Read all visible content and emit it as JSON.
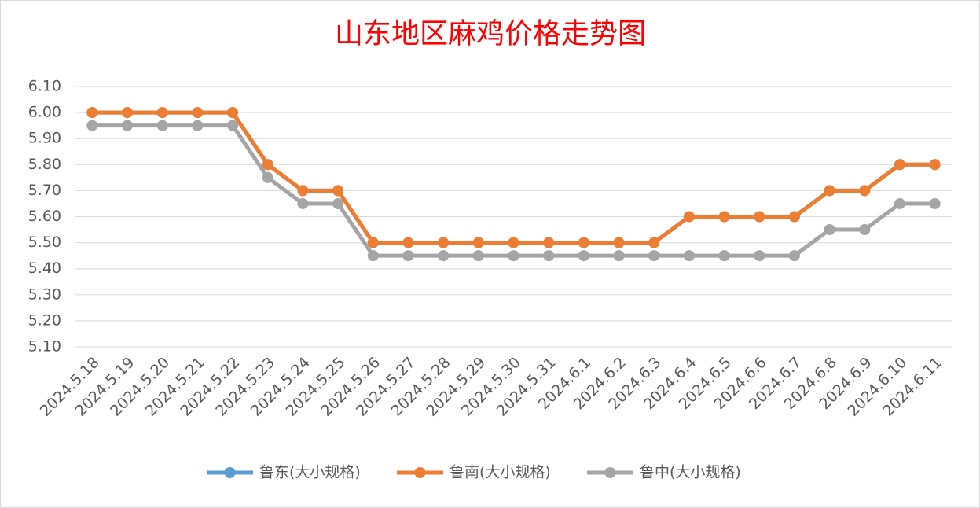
{
  "chart_data": {
    "type": "line",
    "title": "山东地区麻鸡价格走势图",
    "categories": [
      "2024.5.18",
      "2024.5.19",
      "2024.5.20",
      "2024.5.21",
      "2024.5.22",
      "2024.5.23",
      "2024.5.24",
      "2024.5.25",
      "2024.5.26",
      "2024.5.27",
      "2024.5.28",
      "2024.5.29",
      "2024.5.30",
      "2024.5.31",
      "2024.6.1",
      "2024.6.2",
      "2024.6.3",
      "2024.6.4",
      "2024.6.5",
      "2024.6.6",
      "2024.6.7",
      "2024.6.8",
      "2024.6.9",
      "2024.6.10",
      "2024.6.11"
    ],
    "series": [
      {
        "name": "鲁东(大小规格)",
        "color": "#5b9bd5",
        "values": [
          6.0,
          6.0,
          6.0,
          6.0,
          6.0,
          5.8,
          5.7,
          5.7,
          5.5,
          5.5,
          5.5,
          5.5,
          5.5,
          5.5,
          5.5,
          5.5,
          5.5,
          5.6,
          5.6,
          5.6,
          5.6,
          5.7,
          5.7,
          5.8,
          5.8
        ]
      },
      {
        "name": "鲁南(大小规格)",
        "color": "#ed7d31",
        "values": [
          6.0,
          6.0,
          6.0,
          6.0,
          6.0,
          5.8,
          5.7,
          5.7,
          5.5,
          5.5,
          5.5,
          5.5,
          5.5,
          5.5,
          5.5,
          5.5,
          5.5,
          5.6,
          5.6,
          5.6,
          5.6,
          5.7,
          5.7,
          5.8,
          5.8
        ]
      },
      {
        "name": "鲁中(大小规格)",
        "color": "#a5a5a5",
        "values": [
          5.95,
          5.95,
          5.95,
          5.95,
          5.95,
          5.75,
          5.65,
          5.65,
          5.45,
          5.45,
          5.45,
          5.45,
          5.45,
          5.45,
          5.45,
          5.45,
          5.45,
          5.45,
          5.45,
          5.45,
          5.45,
          5.55,
          5.55,
          5.65,
          5.65
        ]
      }
    ],
    "ylim": [
      5.1,
      6.1
    ],
    "yticks": [
      {
        "value": 5.1,
        "label": "5.10"
      },
      {
        "value": 5.2,
        "label": "5.20"
      },
      {
        "value": 5.3,
        "label": "5.30"
      },
      {
        "value": 5.4,
        "label": "5.40"
      },
      {
        "value": 5.5,
        "label": "5.50"
      },
      {
        "value": 5.6,
        "label": "5.60"
      },
      {
        "value": 5.7,
        "label": "5.70"
      },
      {
        "value": 5.8,
        "label": "5.80"
      },
      {
        "value": 5.9,
        "label": "5.90"
      },
      {
        "value": 6.0,
        "label": "6.00"
      },
      {
        "value": 6.1,
        "label": "6.10"
      }
    ],
    "grid": true,
    "legend": "bottom"
  }
}
